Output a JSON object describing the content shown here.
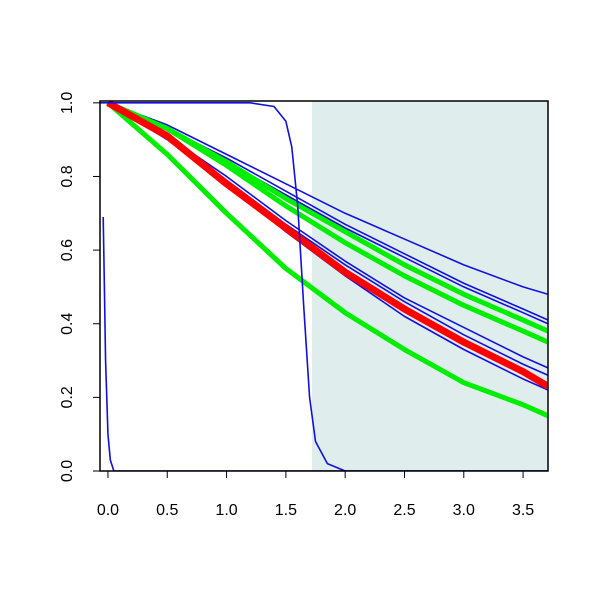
{
  "chart_data": {
    "type": "line",
    "xlim": [
      -0.067,
      3.71
    ],
    "ylim": [
      0,
      1.005
    ],
    "xticks": [
      {
        "value": 0,
        "label": "0.0"
      },
      0.5,
      {
        "value": 1,
        "label": "1.0"
      },
      1.5,
      {
        "value": 2,
        "label": "2.0"
      },
      2.5,
      {
        "value": 3,
        "label": "3.0"
      },
      3.5
    ],
    "yticks": [
      {
        "value": 0,
        "label": "0.0"
      },
      0.2,
      0.4,
      0.6,
      0.8,
      {
        "value": 1,
        "label": "1.0"
      }
    ],
    "shaded_xrange": [
      1.72,
      3.71
    ],
    "shade_color": "#e0eded",
    "series": [
      {
        "color": "#1010e0",
        "width": 1.6,
        "x": [
          0,
          0.5,
          1,
          1.5,
          2,
          2.5,
          3,
          3.5,
          3.71
        ],
        "values": [
          1,
          0.94,
          0.86,
          0.78,
          0.7,
          0.63,
          0.56,
          0.5,
          0.48
        ]
      },
      {
        "color": "#1010e0",
        "width": 1.6,
        "x": [
          0,
          0.5,
          1,
          1.5,
          2,
          2.5,
          3,
          3.5,
          3.71
        ],
        "values": [
          1,
          0.93,
          0.85,
          0.76,
          0.67,
          0.59,
          0.51,
          0.44,
          0.41
        ]
      },
      {
        "color": "#1010e0",
        "width": 1.6,
        "x": [
          0,
          0.5,
          1,
          1.5,
          2,
          2.5,
          3,
          3.5,
          3.71
        ],
        "values": [
          1,
          0.93,
          0.84,
          0.75,
          0.66,
          0.58,
          0.5,
          0.43,
          0.4
        ]
      },
      {
        "color": "#1010e0",
        "width": 1.6,
        "x": [
          0,
          0.5,
          1,
          1.5,
          2,
          2.5,
          3,
          3.5,
          3.71
        ],
        "values": [
          1,
          0.91,
          0.8,
          0.68,
          0.57,
          0.47,
          0.39,
          0.31,
          0.28
        ]
      },
      {
        "color": "#1010e0",
        "width": 1.6,
        "x": [
          0,
          0.5,
          1,
          1.5,
          2,
          2.5,
          3,
          3.5,
          3.71
        ],
        "values": [
          1,
          0.91,
          0.79,
          0.67,
          0.56,
          0.46,
          0.37,
          0.29,
          0.26
        ]
      },
      {
        "color": "#1010e0",
        "width": 1.6,
        "x": [
          0,
          0.5,
          1,
          1.5,
          2,
          2.5,
          3,
          3.5,
          3.71
        ],
        "values": [
          1,
          0.9,
          0.78,
          0.65,
          0.53,
          0.42,
          0.33,
          0.25,
          0.22
        ]
      },
      {
        "color": "#00ee00",
        "width": 5,
        "x": [
          0,
          0.5,
          1,
          1.5,
          2,
          2.5,
          3,
          3.5,
          3.71
        ],
        "values": [
          1,
          0.86,
          0.7,
          0.55,
          0.43,
          0.33,
          0.24,
          0.18,
          0.15
        ]
      },
      {
        "color": "#00ee00",
        "width": 5,
        "x": [
          0,
          0.5,
          1,
          1.5,
          2,
          2.5,
          3,
          3.5,
          3.71
        ],
        "values": [
          1,
          0.93,
          0.83,
          0.72,
          0.62,
          0.53,
          0.45,
          0.38,
          0.35
        ]
      },
      {
        "color": "#00ee00",
        "width": 5,
        "x": [
          0,
          0.5,
          1,
          1.5,
          2,
          2.5,
          3,
          3.5,
          3.71
        ],
        "values": [
          1,
          0.93,
          0.84,
          0.74,
          0.65,
          0.56,
          0.48,
          0.41,
          0.38
        ]
      },
      {
        "color": "#ff0000",
        "width": 7,
        "x": [
          0,
          0.5,
          1,
          1.5,
          2,
          2.5,
          3,
          3.5,
          3.71
        ],
        "values": [
          1,
          0.91,
          0.78,
          0.66,
          0.54,
          0.44,
          0.35,
          0.27,
          0.23
        ]
      },
      {
        "color": "#1010e0",
        "width": 1.6,
        "x": [
          -0.067,
          1.2,
          1.4,
          1.5,
          1.55,
          1.6,
          1.65,
          1.7,
          1.75,
          1.85,
          2.0,
          3.71
        ],
        "values": [
          1,
          1,
          0.99,
          0.95,
          0.88,
          0.72,
          0.45,
          0.2,
          0.08,
          0.02,
          0,
          0
        ]
      },
      {
        "color": "#1010e0",
        "width": 1.6,
        "x": [
          -0.04,
          -0.03,
          -0.02,
          0,
          0.02,
          0.05,
          3.71
        ],
        "values": [
          0.69,
          0.5,
          0.3,
          0.1,
          0.03,
          0,
          0
        ]
      }
    ]
  }
}
